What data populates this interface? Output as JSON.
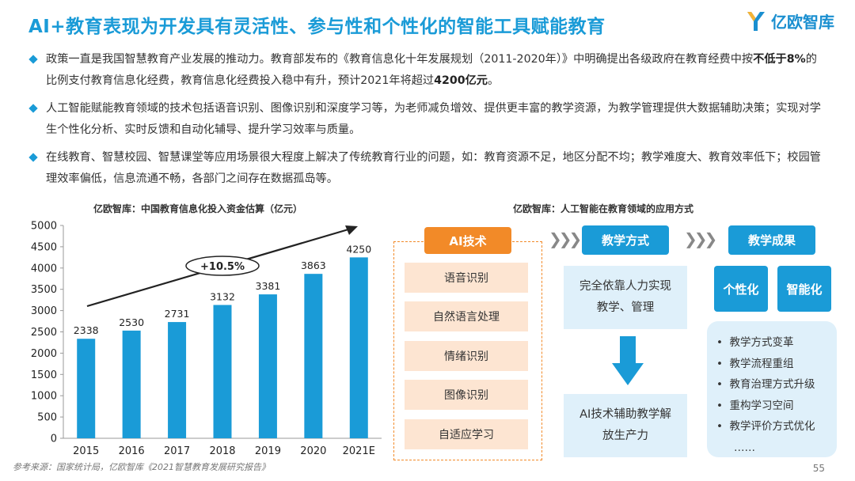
{
  "title": "AI+教育表现为开发具有灵活性、参与性和个性化的智能工具赋能教育",
  "logo": {
    "text": "亿欧智库",
    "icon": "yiou-logo-icon"
  },
  "bullets": [
    {
      "parts": [
        "政策一直是我国智慧教育产业发展的推动力。教育部发布的《教育信息化十年发展规划（2011-2020年）》中明确提出各级政府在教育经费中按",
        "不低于8%",
        "的比例支付教育信息化经费，教育信息化经费投入稳中有升，预计2021年将超过",
        "4200亿元",
        "。"
      ]
    },
    {
      "text": "人工智能赋能教育领域的技术包括语音识别、图像识别和深度学习等，为老师减负增效、提供更丰富的教学资源，为教学管理提供大数据辅助决策；实现对学生个性化分析、实时反馈和自动化辅导、提升学习效率与质量。"
    },
    {
      "text": "在线教育、智慧校园、智慧课堂等应用场景很大程度上解决了传统教育行业的问题，如：教育资源不足，地区分配不均；教学难度大、教育效率低下；校园管理效率偏低，信息流通不畅，各部门之间存在数据孤岛等。"
    }
  ],
  "chart_data": {
    "type": "bar",
    "title": "亿欧智库：中国教育信息化投入资金估算（亿元）",
    "categories": [
      "2015",
      "2016",
      "2017",
      "2018",
      "2019",
      "2020",
      "2021E"
    ],
    "values": [
      2338,
      2530,
      2731,
      3132,
      3381,
      3863,
      4250
    ],
    "yticks": [
      0,
      500,
      1000,
      1500,
      2000,
      2500,
      3000,
      3500,
      4000,
      4500,
      5000
    ],
    "ylim": [
      0,
      5000
    ],
    "growth_label": "+10.5%",
    "bar_color": "#1a9bd7",
    "grid": false
  },
  "diagram": {
    "title": "亿欧智库：人工智能在教育领域的应用方式",
    "ai_header": "AI技术",
    "ai_items": [
      "语音识别",
      "自然语言处理",
      "情绪识别",
      "图像识别",
      "自适应学习"
    ],
    "method_header": "教学方式",
    "method_before": "完全依靠人力实现教学、管理",
    "method_after": "AI技术辅助教学解放生产力",
    "result_header": "教学成果",
    "result_tags": [
      "个性化",
      "智能化"
    ],
    "result_items": [
      "教学方式变革",
      "教学流程重组",
      "教育治理方式升级",
      "重构学习空间",
      "教学评价方式优化",
      "……"
    ],
    "colors": {
      "blue": "#1a9bd7",
      "orange": "#f28a28",
      "light_orange": "#fde5d2",
      "light_blue": "#dff0fa"
    }
  },
  "source": "参考来源：国家统计局，亿欧智库《2021智慧教育发展研究报告》",
  "page_number": "55"
}
